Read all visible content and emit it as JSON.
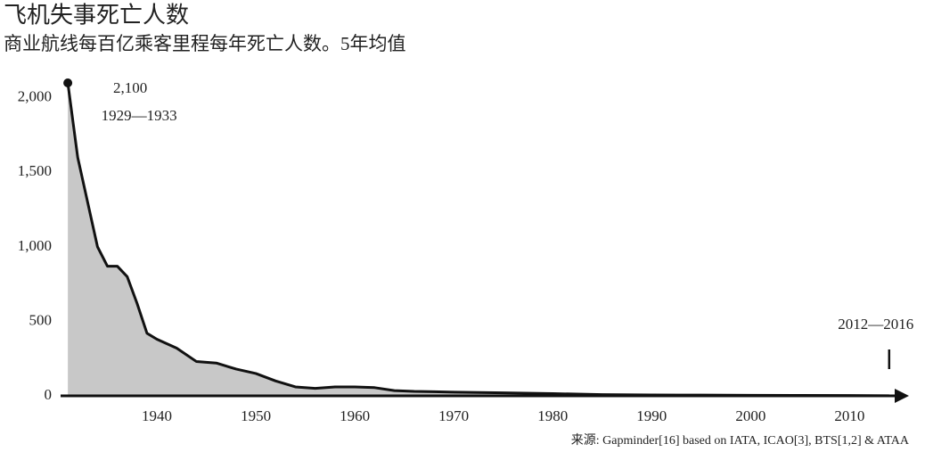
{
  "chart_data": {
    "type": "area",
    "title": "飞机失事死亡人数",
    "subtitle": "商业航线每百亿乘客里程每年死亡人数。5年均值",
    "source": "来源: Gapminder[16] based on IATA, ICAO[3], BTS[1,2] & ATAA",
    "x": [
      1931,
      1932,
      1933,
      1934,
      1935,
      1936,
      1937,
      1938,
      1939,
      1940,
      1942,
      1944,
      1946,
      1948,
      1950,
      1952,
      1954,
      1956,
      1958,
      1960,
      1962,
      1964,
      1966,
      1968,
      1970,
      1975,
      1980,
      1985,
      1990,
      1995,
      2000,
      2005,
      2010,
      2014
    ],
    "values": [
      2100,
      1600,
      1300,
      1000,
      870,
      870,
      800,
      620,
      420,
      380,
      320,
      230,
      220,
      180,
      150,
      100,
      60,
      50,
      60,
      60,
      55,
      35,
      30,
      28,
      25,
      20,
      15,
      8,
      6,
      5,
      4,
      3,
      2,
      1
    ],
    "value_labels": [
      "2,100",
      null,
      null,
      null,
      null,
      null,
      null,
      null,
      null,
      null,
      null,
      null,
      null,
      null,
      null,
      null,
      null,
      null,
      null,
      null,
      null,
      null,
      null,
      null,
      null,
      null,
      null,
      null,
      null,
      null,
      null,
      null,
      null,
      null
    ],
    "annotations": [
      "1929—1933",
      "2012—2016"
    ],
    "color": "#c8c8c8",
    "line_color": "#111111",
    "xlim": [
      1930,
      2016
    ],
    "ylim": [
      0,
      2100
    ],
    "xticks": [
      1940,
      1950,
      1960,
      1970,
      1980,
      1990,
      2000,
      2010
    ],
    "yticks": [
      0,
      500,
      {
        "value": 1000,
        "label": "1,000"
      },
      {
        "value": 1500,
        "label": "1,500"
      },
      {
        "value": 2000,
        "label": "2,000"
      }
    ]
  }
}
